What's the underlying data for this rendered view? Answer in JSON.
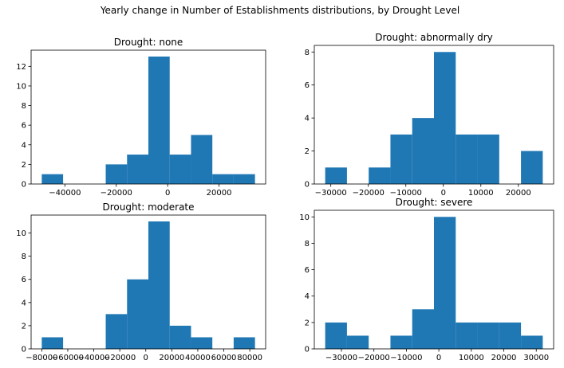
{
  "figure": {
    "suptitle": "Yearly change in Number of Establishments distributions, by Drought Level"
  },
  "colors": {
    "bar": "#1f77b4",
    "axis": "#000000",
    "background": "#ffffff"
  },
  "chart_data": [
    {
      "type": "bar",
      "title": "Drought: none",
      "bins": [
        {
          "x0": -49000,
          "x1": -40700,
          "count": 1
        },
        {
          "x0": -40700,
          "x1": -32400,
          "count": 0
        },
        {
          "x0": -32400,
          "x1": -24100,
          "count": 0
        },
        {
          "x0": -24100,
          "x1": -15800,
          "count": 2
        },
        {
          "x0": -15800,
          "x1": -7500,
          "count": 3
        },
        {
          "x0": -7500,
          "x1": 800,
          "count": 13
        },
        {
          "x0": 800,
          "x1": 9100,
          "count": 3
        },
        {
          "x0": 9100,
          "x1": 17400,
          "count": 5
        },
        {
          "x0": 17400,
          "x1": 25700,
          "count": 1
        },
        {
          "x0": 25700,
          "x1": 34000,
          "count": 1
        }
      ],
      "xlim": [
        -53150,
        38150
      ],
      "ylim": [
        0,
        13.65
      ],
      "xticks": [
        -40000,
        -20000,
        0,
        20000,
        40000
      ],
      "xtick_labels": [
        "−40000",
        "−20000",
        "0",
        "20000",
        ""
      ],
      "yticks": [
        0,
        2,
        4,
        6,
        8,
        10,
        12
      ],
      "ytick_labels": [
        "0",
        "2",
        "4",
        "6",
        "8",
        "10",
        "12"
      ]
    },
    {
      "type": "bar",
      "title": "Drought: abnormally dry",
      "bins": [
        {
          "x0": -31500,
          "x1": -25700,
          "count": 1
        },
        {
          "x0": -25700,
          "x1": -19900,
          "count": 0
        },
        {
          "x0": -19900,
          "x1": -14100,
          "count": 1
        },
        {
          "x0": -14100,
          "x1": -8300,
          "count": 3
        },
        {
          "x0": -8300,
          "x1": -2500,
          "count": 4
        },
        {
          "x0": -2500,
          "x1": 3300,
          "count": 8
        },
        {
          "x0": 3300,
          "x1": 9100,
          "count": 3
        },
        {
          "x0": 9100,
          "x1": 14900,
          "count": 3
        },
        {
          "x0": 14900,
          "x1": 20700,
          "count": 0
        },
        {
          "x0": 20700,
          "x1": 26500,
          "count": 2
        }
      ],
      "xlim": [
        -34400,
        29400
      ],
      "ylim": [
        0,
        8.4
      ],
      "xticks": [
        -30000,
        -20000,
        -10000,
        0,
        10000,
        20000
      ],
      "xtick_labels": [
        "−30000",
        "−20000",
        "−10000",
        "0",
        "10000",
        "20000"
      ],
      "yticks": [
        0,
        2,
        4,
        6,
        8
      ],
      "ytick_labels": [
        "0",
        "2",
        "4",
        "6",
        "8"
      ]
    },
    {
      "type": "bar",
      "title": "Drought: moderate",
      "bins": [
        {
          "x0": -80000,
          "x1": -63600,
          "count": 1
        },
        {
          "x0": -63600,
          "x1": -47200,
          "count": 0
        },
        {
          "x0": -47200,
          "x1": -30800,
          "count": 0
        },
        {
          "x0": -30800,
          "x1": -14400,
          "count": 3
        },
        {
          "x0": -14400,
          "x1": 2000,
          "count": 6
        },
        {
          "x0": 2000,
          "x1": 18400,
          "count": 11
        },
        {
          "x0": 18400,
          "x1": 34800,
          "count": 2
        },
        {
          "x0": 34800,
          "x1": 51200,
          "count": 1
        },
        {
          "x0": 51200,
          "x1": 67600,
          "count": 0
        },
        {
          "x0": 67600,
          "x1": 84000,
          "count": 1
        }
      ],
      "xlim": [
        -88200,
        92200
      ],
      "ylim": [
        0,
        11.55
      ],
      "xticks": [
        -80000,
        -60000,
        -40000,
        -20000,
        0,
        20000,
        40000,
        60000,
        80000
      ],
      "xtick_labels": [
        "−80000",
        "−60000",
        "−40000",
        "−20000",
        "0",
        "20000",
        "40000",
        "60000",
        "80000"
      ],
      "yticks": [
        0,
        2,
        4,
        6,
        8,
        10
      ],
      "ytick_labels": [
        "0",
        "2",
        "4",
        "6",
        "8",
        "10"
      ]
    },
    {
      "type": "bar",
      "title": "Drought: severe",
      "bins": [
        {
          "x0": -35000,
          "x1": -28300,
          "count": 2
        },
        {
          "x0": -28300,
          "x1": -21600,
          "count": 1
        },
        {
          "x0": -21600,
          "x1": -14900,
          "count": 0
        },
        {
          "x0": -14900,
          "x1": -8200,
          "count": 1
        },
        {
          "x0": -8200,
          "x1": -1500,
          "count": 3
        },
        {
          "x0": -1500,
          "x1": 5200,
          "count": 10
        },
        {
          "x0": 5200,
          "x1": 11900,
          "count": 2
        },
        {
          "x0": 11900,
          "x1": 18600,
          "count": 2
        },
        {
          "x0": 18600,
          "x1": 25300,
          "count": 2
        },
        {
          "x0": 25300,
          "x1": 32000,
          "count": 1
        }
      ],
      "xlim": [
        -38350,
        35350
      ],
      "ylim": [
        0,
        10.5
      ],
      "xticks": [
        -30000,
        -20000,
        -10000,
        0,
        10000,
        20000,
        30000
      ],
      "xtick_labels": [
        "−30000",
        "−20000",
        "−10000",
        "0",
        "10000",
        "20000",
        "30000"
      ],
      "yticks": [
        0,
        2,
        4,
        6,
        8,
        10
      ],
      "ytick_labels": [
        "0",
        "2",
        "4",
        "6",
        "8",
        "10"
      ]
    }
  ]
}
